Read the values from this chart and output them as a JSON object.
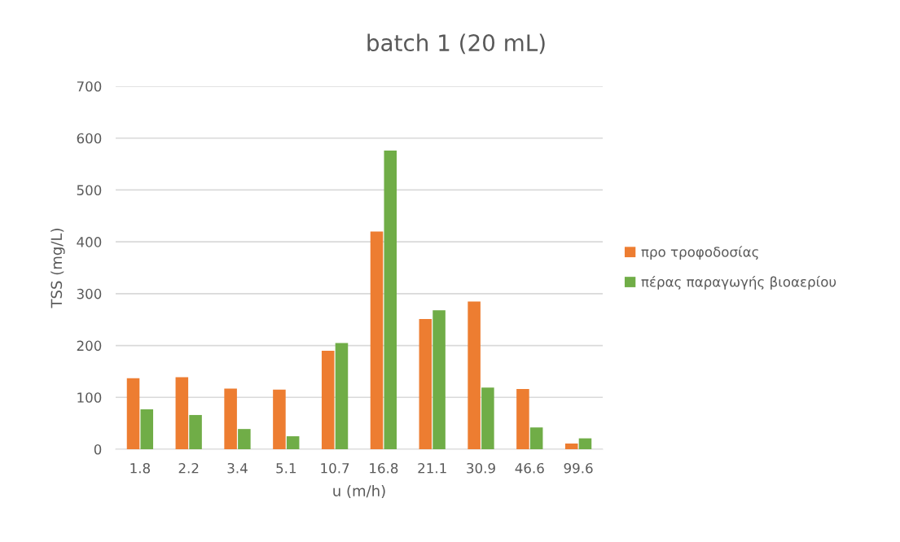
{
  "chart_data": {
    "type": "bar",
    "title": "batch 1 (20 mL)",
    "xlabel": "u (m/h)",
    "ylabel": "TSS (mg/L)",
    "categories": [
      "1.8",
      "2.2",
      "3.4",
      "5.1",
      "10.7",
      "16.8",
      "21.1",
      "30.9",
      "46.6",
      "99.6"
    ],
    "series": [
      {
        "name": "προ τροφοδοσίας",
        "color": "#ed7d31",
        "values": [
          137,
          139,
          117,
          115,
          190,
          420,
          251,
          285,
          116,
          11
        ]
      },
      {
        "name": "πέρας παραγωγής βιοαερίου",
        "color": "#70ad47",
        "values": [
          77,
          66,
          39,
          25,
          205,
          576,
          268,
          119,
          42,
          21
        ]
      }
    ],
    "ylim": [
      0,
      700
    ],
    "yticks": [
      0,
      100,
      200,
      300,
      400,
      500,
      600,
      700
    ],
    "grid": "y",
    "legend": "right"
  }
}
